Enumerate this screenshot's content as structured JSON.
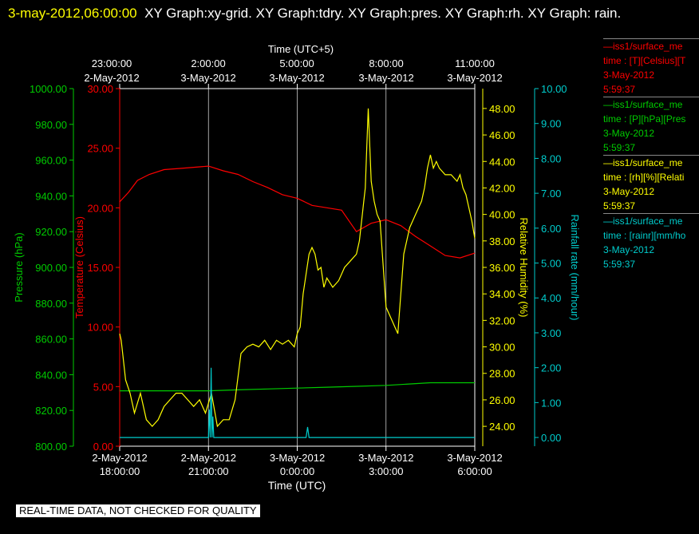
{
  "title": {
    "timestamp": "3-may-2012,06:00:00",
    "rest": "XY Graph:xy-grid.  XY Graph:tdry.  XY Graph:pres.  XY Graph:rh.  XY Graph: rain."
  },
  "banner": "REAL-TIME DATA, NOT CHECKED FOR QUALITY",
  "colors": {
    "tdry": "#ff0000",
    "pres": "#00cc00",
    "rh": "#ffff00",
    "rain": "#00cccc",
    "grid": "#ffffff",
    "axis": "#ffffff"
  },
  "legend": [
    {
      "name": "iss1/surface_me",
      "line1": "time : [T][Celsius][T",
      "date": "3-May-2012",
      "time": "5:59:37",
      "color": "#ff0000"
    },
    {
      "name": "iss1/surface_me",
      "line1": "time : [P][hPa][Pres",
      "date": "3-May-2012",
      "time": "5:59:37",
      "color": "#00cc00"
    },
    {
      "name": "iss1/surface_me",
      "line1": "time : [rh][%][Relati",
      "date": "3-May-2012",
      "time": "5:59:37",
      "color": "#ffff00"
    },
    {
      "name": "iss1/surface_me",
      "line1": "time : [rainr][mm/ho",
      "date": "3-May-2012",
      "time": "5:59:37",
      "color": "#00cccc"
    }
  ],
  "chart_data": {
    "type": "line",
    "xlabel": "Time (UTC)",
    "x2label": "Time (UTC+5)",
    "xlim": [
      0,
      12
    ],
    "x_ticks": [
      0,
      3,
      6,
      9,
      12
    ],
    "x_tick_labels": [
      [
        "2-May-2012",
        "18:00:00"
      ],
      [
        "2-May-2012",
        "21:00:00"
      ],
      [
        "3-May-2012",
        "0:00:00"
      ],
      [
        "3-May-2012",
        "3:00:00"
      ],
      [
        "3-May-2012",
        "6:00:00"
      ]
    ],
    "x2_tick_labels": [
      [
        "23:00:00",
        "2-May-2012"
      ],
      [
        "2:00:00",
        "3-May-2012"
      ],
      [
        "5:00:00",
        "3-May-2012"
      ],
      [
        "8:00:00",
        "3-May-2012"
      ],
      [
        "11:00:00",
        "3-May-2012"
      ]
    ],
    "grid": true,
    "axes": {
      "pres": {
        "label": "Pressure (hPa)",
        "range": [
          800,
          1000
        ],
        "ticks": [
          "800.00",
          "820.00",
          "840.00",
          "860.00",
          "880.00",
          "900.00",
          "920.00",
          "940.00",
          "960.00",
          "980.00",
          "1000.00"
        ]
      },
      "tdry": {
        "label": "Temperature (Celsius)",
        "range": [
          0,
          30
        ],
        "ticks": [
          "0.00",
          "5.00",
          "10.00",
          "15.00",
          "20.00",
          "25.00",
          "30.00"
        ]
      },
      "rh": {
        "label": "Relative Humidity (%)",
        "range": [
          22.5,
          49.5
        ],
        "ticks": [
          "24.00",
          "26.00",
          "28.00",
          "30.00",
          "32.00",
          "34.00",
          "36.00",
          "38.00",
          "40.00",
          "42.00",
          "44.00",
          "46.00",
          "48.00"
        ]
      },
      "rain": {
        "label": "Rainfall rate (mm/hour)",
        "range": [
          -0.25,
          10
        ],
        "ticks": [
          "0.00",
          "1.00",
          "2.00",
          "3.00",
          "4.00",
          "5.00",
          "6.00",
          "7.00",
          "8.00",
          "9.00",
          "10.00"
        ]
      }
    },
    "series": [
      {
        "name": "tdry",
        "axis": "tdry",
        "x": [
          0,
          0.3,
          0.6,
          1,
          1.5,
          2,
          2.5,
          3,
          3.5,
          4,
          4.5,
          5,
          5.5,
          6,
          6.5,
          7,
          7.5,
          8,
          8.5,
          9,
          9.5,
          10,
          10.5,
          11,
          11.5,
          12
        ],
        "y": [
          20.5,
          21.3,
          22.3,
          22.8,
          23.2,
          23.3,
          23.4,
          23.5,
          23.1,
          22.8,
          22.2,
          21.7,
          21.1,
          20.8,
          20.2,
          20.0,
          19.8,
          18.0,
          18.7,
          19.0,
          18.5,
          17.6,
          16.8,
          16.0,
          15.8,
          16.2
        ]
      },
      {
        "name": "pres",
        "axis": "pres",
        "x": [
          0,
          1,
          2,
          3,
          4,
          5,
          6,
          7,
          8,
          9,
          10,
          10.5,
          11,
          12
        ],
        "y": [
          831.0,
          831.0,
          831.0,
          831.0,
          831.5,
          832.0,
          832.5,
          833.0,
          833.5,
          834.0,
          835.0,
          835.5,
          835.5,
          835.5
        ]
      },
      {
        "name": "rh",
        "axis": "rh",
        "x": [
          0,
          0.05,
          0.2,
          0.35,
          0.5,
          0.7,
          0.9,
          1.1,
          1.3,
          1.5,
          1.7,
          1.9,
          2.1,
          2.3,
          2.5,
          2.7,
          2.9,
          3.1,
          3.3,
          3.5,
          3.7,
          3.9,
          4.1,
          4.3,
          4.5,
          4.7,
          4.9,
          5.1,
          5.3,
          5.5,
          5.7,
          5.9,
          6.0,
          6.1,
          6.2,
          6.3,
          6.4,
          6.5,
          6.6,
          6.7,
          6.8,
          6.9,
          7.0,
          7.2,
          7.4,
          7.6,
          7.8,
          8.0,
          8.1,
          8.2,
          8.25,
          8.3,
          8.35,
          8.4,
          8.5,
          8.6,
          8.7,
          8.8,
          9.0,
          9.2,
          9.3,
          9.4,
          9.5,
          9.6,
          9.8,
          10.0,
          10.2,
          10.3,
          10.4,
          10.5,
          10.6,
          10.7,
          10.8,
          11.0,
          11.2,
          11.4,
          11.5,
          11.6,
          11.7,
          11.8,
          11.9,
          12.0
        ],
        "y": [
          31.0,
          30.5,
          27.5,
          26.5,
          25.0,
          26.5,
          24.5,
          24.0,
          24.5,
          25.5,
          26.0,
          26.5,
          26.5,
          26.0,
          25.5,
          26.0,
          25.0,
          26.5,
          24.0,
          24.5,
          24.5,
          26.0,
          29.5,
          30.0,
          30.2,
          30.0,
          30.5,
          29.8,
          30.5,
          30.2,
          30.5,
          30.0,
          31.0,
          31.5,
          34.0,
          35.5,
          37.0,
          37.5,
          37.0,
          35.8,
          36.0,
          34.5,
          35.2,
          34.5,
          35.0,
          36.0,
          36.5,
          37.0,
          38.0,
          40.0,
          41.0,
          42.0,
          45.0,
          48.0,
          42.5,
          41.0,
          40.0,
          39.5,
          33.0,
          32.0,
          31.5,
          31.0,
          34.0,
          37.0,
          39.0,
          40.0,
          41.0,
          42.0,
          43.5,
          44.5,
          43.5,
          44.0,
          43.5,
          43.0,
          43.0,
          42.5,
          43.0,
          42.0,
          41.5,
          40.5,
          39.5,
          38.2
        ]
      },
      {
        "name": "rain",
        "axis": "rain",
        "x": [
          0,
          3.0,
          3.03,
          3.06,
          3.09,
          3.12,
          3.15,
          3.18,
          6.2,
          6.3,
          6.35,
          6.4,
          12
        ],
        "y": [
          0,
          0,
          0.8,
          0,
          2.0,
          0,
          0.6,
          0,
          0,
          0,
          0.3,
          0,
          0
        ]
      }
    ]
  }
}
